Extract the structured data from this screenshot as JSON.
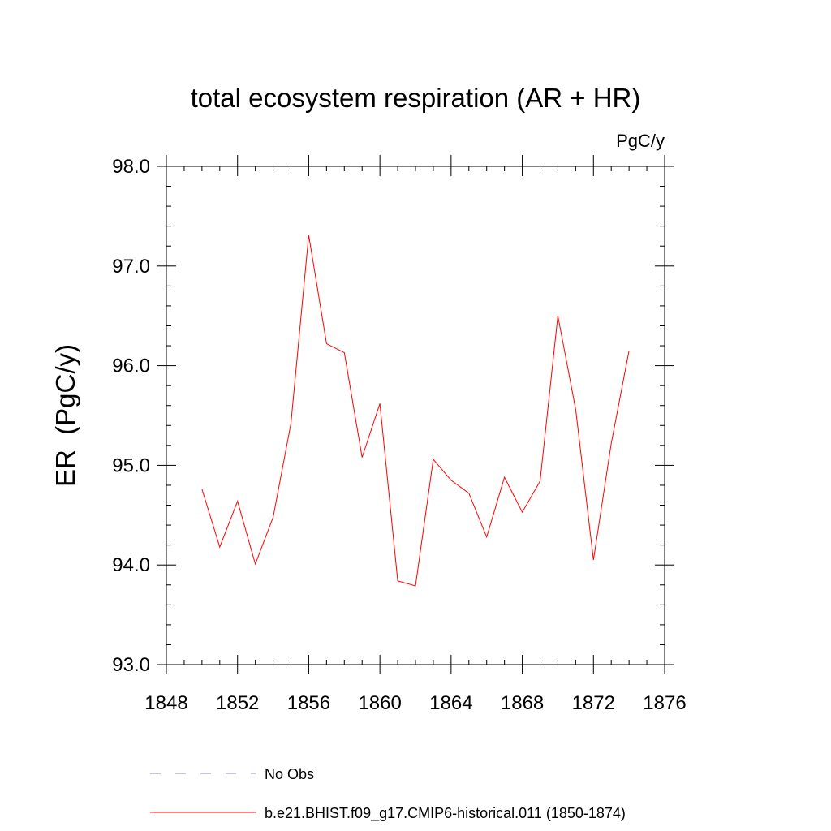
{
  "chart_data": {
    "type": "line",
    "title": "total ecosystem respiration (AR + HR)",
    "units_label": "PgC/y",
    "ylabel": "ER  (PgC/y)",
    "xlabel": "",
    "xlim": [
      1848,
      1876
    ],
    "ylim": [
      93.0,
      98.0
    ],
    "x_ticks": [
      1848,
      1852,
      1856,
      1860,
      1864,
      1868,
      1872,
      1876
    ],
    "x_tick_labels": [
      "1848",
      "1852",
      "1856",
      "1860",
      "1864",
      "1868",
      "1872",
      "1876"
    ],
    "y_ticks": [
      93.0,
      94.0,
      95.0,
      96.0,
      97.0,
      98.0
    ],
    "y_tick_labels": [
      "93.0",
      "94.0",
      "95.0",
      "96.0",
      "97.0",
      "98.0"
    ],
    "grid": false,
    "legend_position": "bottom",
    "series": [
      {
        "name": "b.e21.BHIST.f09_g17.CMIP6-historical.011 (1850-1874)",
        "color": "#ff0000",
        "style": "solid",
        "x": [
          1850,
          1851,
          1852,
          1853,
          1854,
          1855,
          1856,
          1857,
          1858,
          1859,
          1860,
          1861,
          1862,
          1863,
          1864,
          1865,
          1866,
          1867,
          1868,
          1869,
          1870,
          1871,
          1872,
          1873,
          1874
        ],
        "y": [
          94.76,
          94.18,
          94.64,
          94.01,
          94.48,
          95.42,
          97.31,
          96.22,
          96.13,
          95.08,
          95.62,
          93.84,
          93.79,
          95.06,
          94.85,
          94.72,
          94.28,
          94.88,
          94.53,
          94.84,
          96.5,
          95.56,
          94.05,
          95.22,
          96.15
        ]
      },
      {
        "name": "No Obs",
        "color": "#8a8ad6",
        "style": "dashed",
        "x": [],
        "y": []
      }
    ]
  }
}
